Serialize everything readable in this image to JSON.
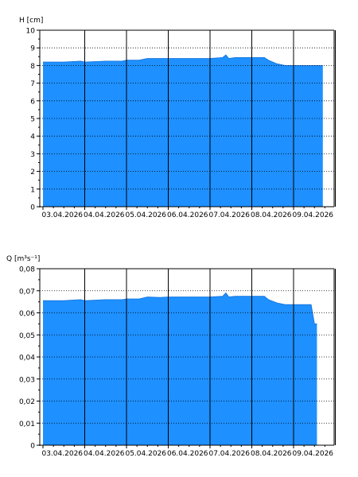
{
  "chart_data": [
    {
      "type": "area",
      "ylabel": "H [cm]",
      "ylim": [
        0,
        10
      ],
      "y_major_ticks": [
        "0",
        "1",
        "2",
        "3",
        "4",
        "5",
        "6",
        "7",
        "8",
        "9",
        "10"
      ],
      "x_tick_labels": [
        "03.04.2026",
        "04.04.2026",
        "05.04.2026",
        "06.04.2026",
        "07.04.2026",
        "08.04.2026",
        "09.04.2026"
      ],
      "xlim": [
        0,
        7.2
      ],
      "grid": "dotted horizontal, solid vertical day lines",
      "fill_color": "#1E90FF",
      "series": [
        {
          "x": [
            0.0,
            0.5,
            0.9,
            1.0,
            1.5,
            1.9,
            2.0,
            2.3,
            2.5,
            2.8,
            3.0,
            3.3,
            3.5,
            3.8,
            4.0,
            4.3,
            4.38,
            4.45,
            4.6,
            4.8,
            5.0,
            5.3,
            5.4,
            5.6,
            5.8,
            6.0,
            6.5,
            6.7
          ],
          "y": [
            8.2,
            8.2,
            8.25,
            8.2,
            8.25,
            8.25,
            8.3,
            8.3,
            8.4,
            8.4,
            8.4,
            8.4,
            8.4,
            8.4,
            8.4,
            8.45,
            8.6,
            8.4,
            8.45,
            8.45,
            8.45,
            8.45,
            8.3,
            8.1,
            8.0,
            8.0,
            8.0,
            8.0
          ]
        }
      ]
    },
    {
      "type": "area",
      "ylabel": "Q [m³s⁻¹]",
      "ylim": [
        0,
        0.08
      ],
      "y_major_ticks": [
        "0",
        "0,01",
        "0,02",
        "0,03",
        "0,04",
        "0,05",
        "0,06",
        "0,07",
        "0,08"
      ],
      "x_tick_labels": [
        "03.04.2026",
        "04.04.2026",
        "05.04.2026",
        "06.04.2026",
        "07.04.2026",
        "08.04.2026",
        "09.04.2026"
      ],
      "xlim": [
        0,
        7.2
      ],
      "grid": "dotted horizontal, solid vertical day lines",
      "fill_color": "#1E90FF",
      "series": [
        {
          "x": [
            0.0,
            0.5,
            0.9,
            1.0,
            1.5,
            1.9,
            2.0,
            2.3,
            2.5,
            2.8,
            3.0,
            3.3,
            3.5,
            3.8,
            4.0,
            4.3,
            4.38,
            4.45,
            4.6,
            4.8,
            5.0,
            5.3,
            5.4,
            5.6,
            5.8,
            6.0,
            6.35,
            6.42,
            6.5,
            6.56
          ],
          "y": [
            0.0655,
            0.0655,
            0.066,
            0.0655,
            0.066,
            0.066,
            0.0663,
            0.0663,
            0.0672,
            0.067,
            0.0672,
            0.0672,
            0.0672,
            0.0672,
            0.0672,
            0.0675,
            0.069,
            0.0672,
            0.0675,
            0.0675,
            0.0675,
            0.0675,
            0.066,
            0.0645,
            0.0637,
            0.0637,
            0.0637,
            0.0637,
            0.055,
            0.055
          ]
        }
      ]
    }
  ]
}
